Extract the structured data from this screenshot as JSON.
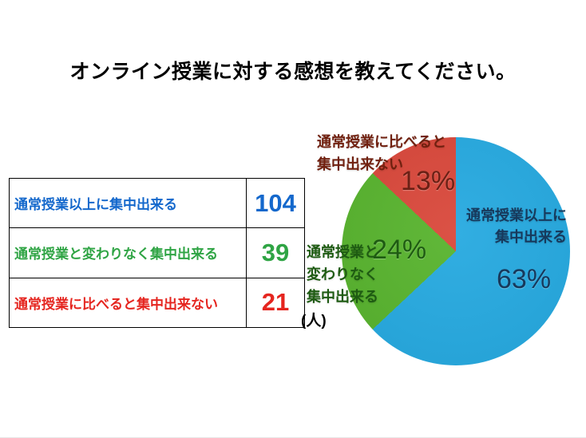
{
  "page": {
    "background": "#ffffff"
  },
  "title": "オンライン授業に対する感想を教えてください。",
  "table": {
    "rows": [
      {
        "label": "通常授業以上に集中出来る",
        "value": "104",
        "color": "#1468CC"
      },
      {
        "label": "通常授業と変わりなく集中出来る",
        "value": "39",
        "color": "#2FA444"
      },
      {
        "label": "通常授業に比べると集中出来ない",
        "value": "21",
        "color": "#E5251F"
      }
    ],
    "unit_label": "(人)"
  },
  "chart_data": {
    "type": "pie",
    "title": "オンライン授業に対する感想を教えてください。",
    "unit": "人",
    "categories": [
      "通常授業以上に集中出来る",
      "通常授業と変わりなく集中出来る",
      "通常授業に比べると集中出来ない"
    ],
    "values": [
      104,
      39,
      21
    ],
    "percentages": [
      63,
      24,
      13
    ],
    "percent_labels": [
      "63%",
      "24%",
      "13%"
    ],
    "slice_colors": [
      "#25A9E0",
      "#57B32D",
      "#D9473A"
    ],
    "label_colors": [
      "#17395C",
      "#1E5B12",
      "#70200F"
    ],
    "start_angle_deg": 0,
    "direction": "clockwise",
    "legend_position": "labels-on-chart",
    "slice_labels": [
      {
        "name": "通常授業以上に\n集中出来る",
        "pct": "63%"
      },
      {
        "name": "通常授業と\n変わりなく\n集中出来る",
        "pct": "24%"
      },
      {
        "name": "通常授業に比べると\n集中出来ない",
        "pct": "13%"
      }
    ]
  }
}
